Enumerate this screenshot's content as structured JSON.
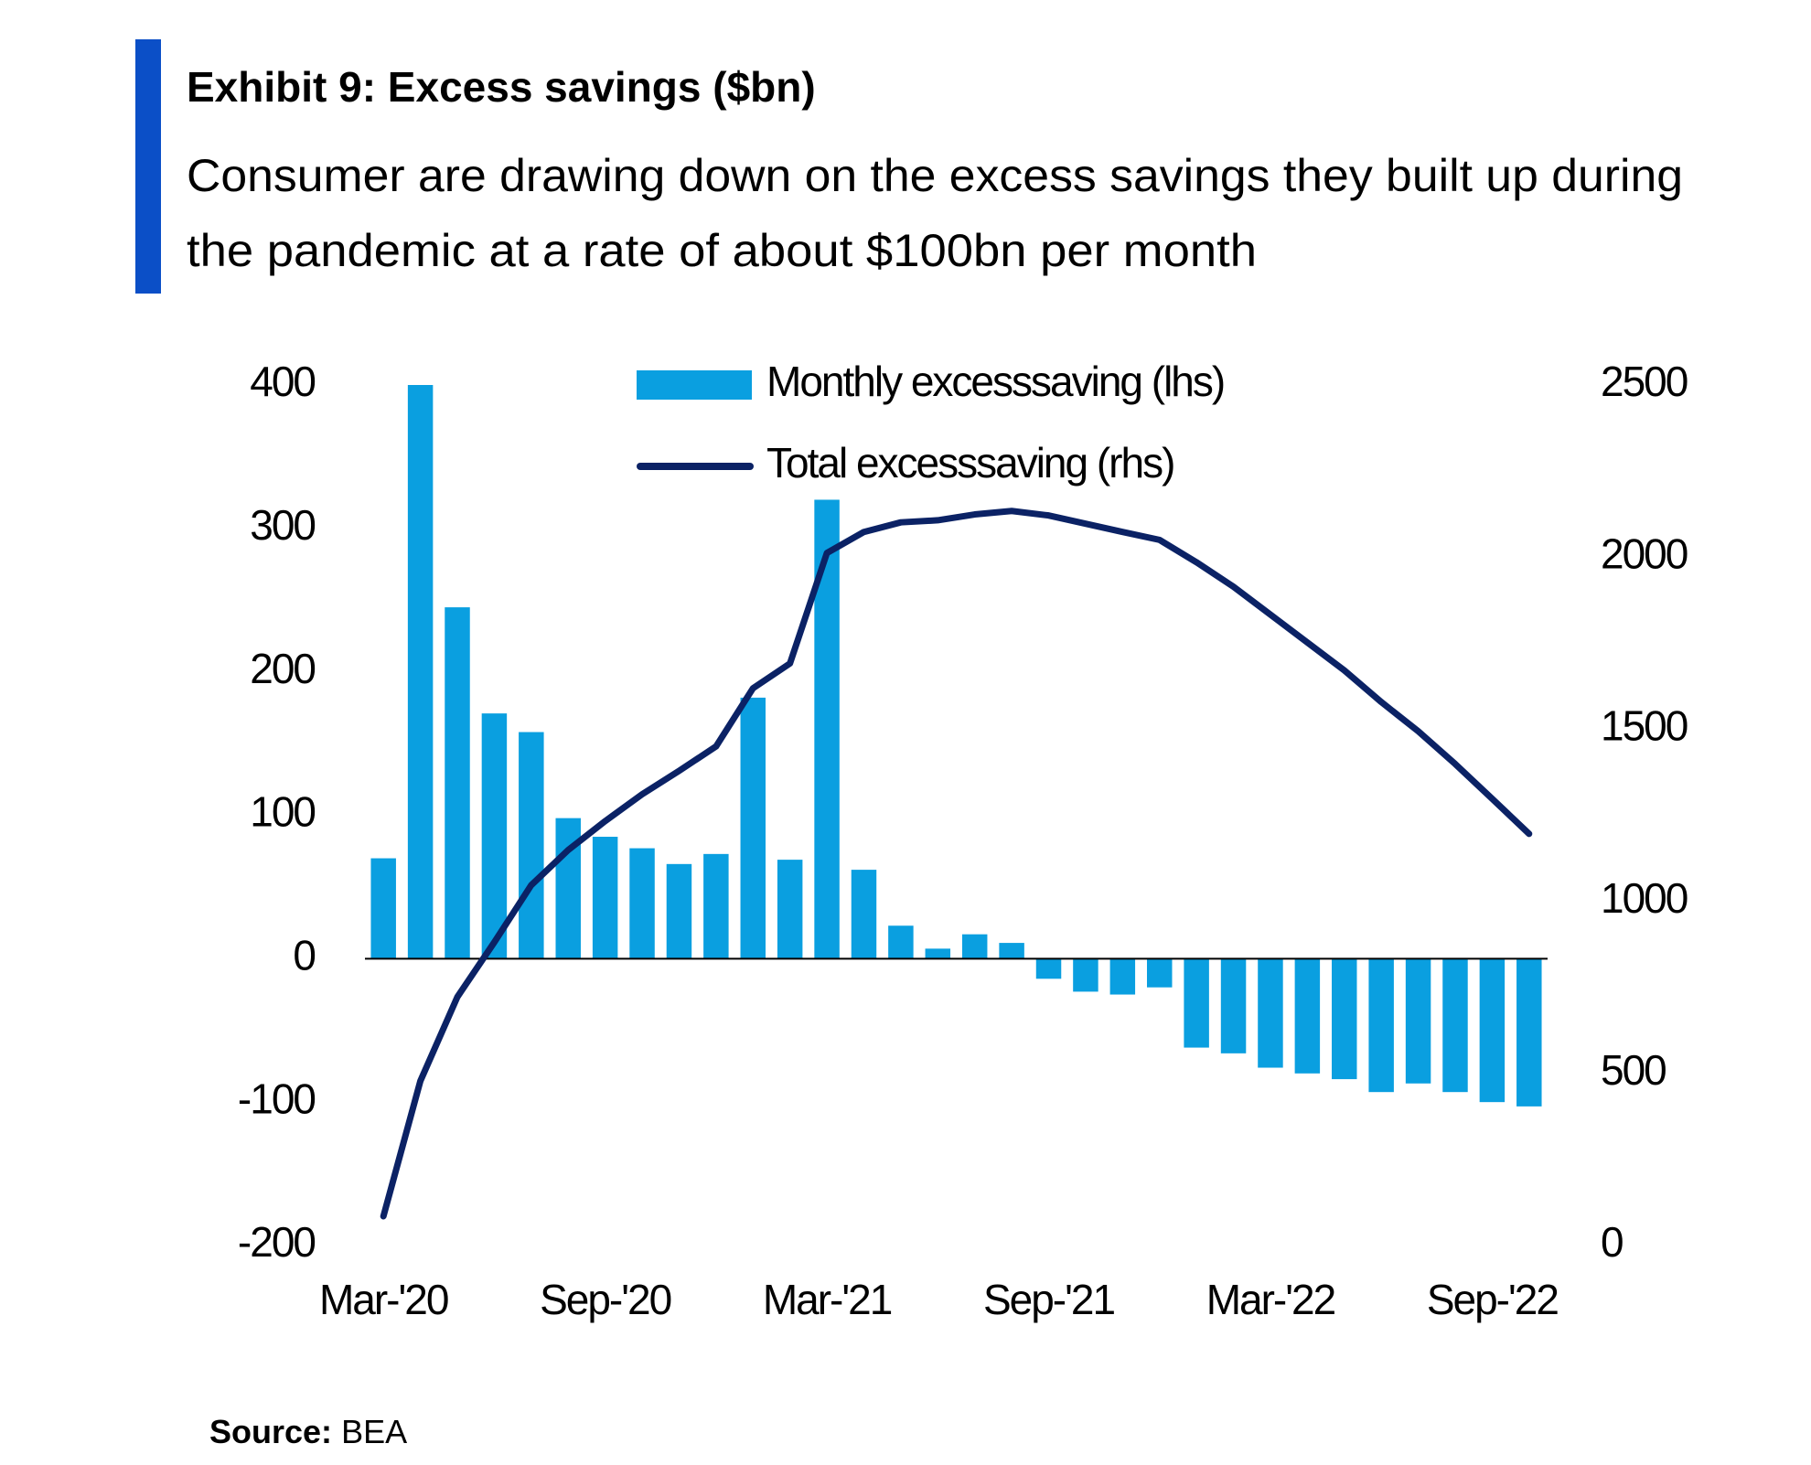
{
  "chart_data": {
    "type": "bar-line",
    "title": "Exhibit 9: Excess savings ($bn)",
    "subtitle": [
      "Consumer are drawing down on the excess savings they built up during",
      "the pandemic at a rate of about $100bn per month"
    ],
    "source": {
      "label": "Source:",
      "text": "BEA"
    },
    "categories": [
      "Mar-'20",
      null,
      null,
      null,
      null,
      null,
      "Sep-'20",
      null,
      null,
      null,
      null,
      null,
      "Mar-'21",
      null,
      null,
      null,
      null,
      null,
      "Sep-'21",
      null,
      null,
      null,
      null,
      null,
      "Mar-'22",
      null,
      null,
      null,
      null,
      null,
      "Sep-'22",
      null
    ],
    "series": [
      {
        "name": "Monthly  excesssaving (lhs)",
        "color": "#0a9fe0",
        "type": "bar",
        "axis": "y",
        "values": [
          70,
          400,
          245,
          171,
          158,
          98,
          85,
          77,
          66,
          73,
          182,
          69,
          320,
          62,
          23,
          7,
          17,
          11,
          -14,
          -23,
          -25,
          -20,
          -62,
          -66,
          -76,
          -80,
          -84,
          -93,
          -87,
          -93,
          -100,
          -103
        ]
      },
      {
        "name": "Total excesssaving (rhs)",
        "color": "#0b2265",
        "type": "line",
        "axis": "y2",
        "values": [
          85,
          478,
          722,
          881,
          1047,
          1149,
          1233,
          1311,
          1379,
          1450,
          1619,
          1691,
          2012,
          2073,
          2101,
          2107,
          2124,
          2134,
          2121,
          2097,
          2073,
          2050,
          1985,
          1914,
          1833,
          1752,
          1671,
          1579,
          1494,
          1399,
          1298,
          1196
        ]
      }
    ],
    "ylim": [
      -200,
      400
    ],
    "yticks": [
      -200,
      -100,
      0,
      100,
      200,
      300,
      400
    ],
    "y2lim": [
      0,
      2500
    ],
    "y2ticks": [
      0,
      500,
      1000,
      1500,
      2000,
      2500
    ],
    "grid": false,
    "accent_color": "#0b4fc7"
  }
}
